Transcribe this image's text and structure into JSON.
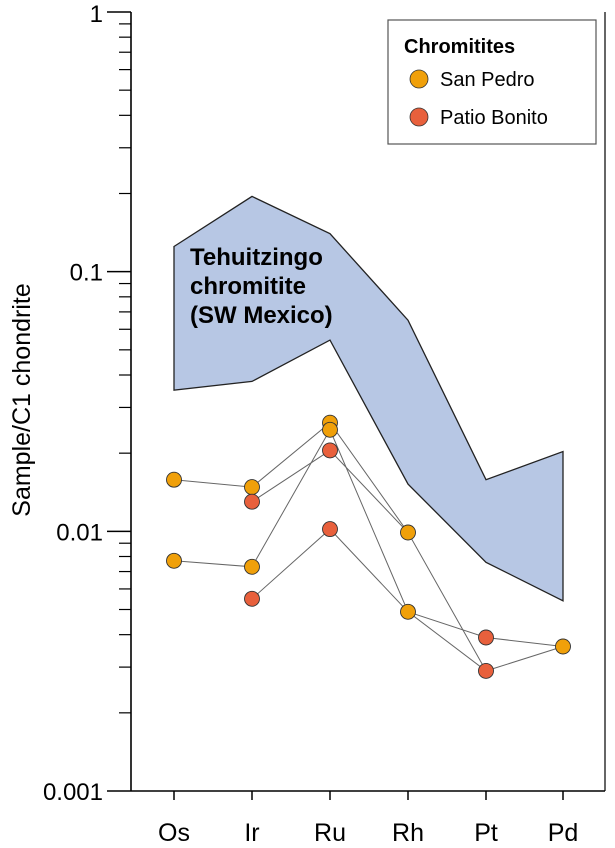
{
  "chart_data": {
    "type": "line",
    "yscale": "log",
    "ylabel": "Sample/C1 chondrite",
    "xlabel": "",
    "ylim": [
      0.001,
      1
    ],
    "y_ticks": [
      {
        "value": 0.001,
        "label": "0.001"
      },
      {
        "value": 0.01,
        "label": "0.01"
      },
      {
        "value": 0.1,
        "label": "0.1"
      },
      {
        "value": 1,
        "label": "1"
      }
    ],
    "categories": [
      "Os",
      "Ir",
      "Ru",
      "Rh",
      "Pt",
      "Pd"
    ],
    "legend": {
      "title": "Chromitites",
      "position": "top-right",
      "entries": [
        {
          "name": "San Pedro",
          "color": "#f0a00a"
        },
        {
          "name": "Patio Bonito",
          "color": "#e8603c"
        }
      ]
    },
    "band": {
      "label_lines": [
        "Tehuitzingo",
        "chromitite",
        "(SW Mexico)"
      ],
      "color": "#b7c7e4",
      "upper": [
        0.125,
        0.195,
        0.14,
        0.065,
        0.0158,
        0.0203
      ],
      "lower": [
        0.035,
        0.0378,
        0.0545,
        0.0152,
        0.0076,
        0.0054
      ]
    },
    "series": [
      {
        "group": "San Pedro",
        "values": [
          0.0158,
          0.0148,
          0.0262,
          0.0099,
          null,
          null
        ]
      },
      {
        "group": "San Pedro",
        "values": [
          0.0077,
          0.0073,
          0.0246,
          0.0049,
          0.0029,
          0.0036
        ]
      },
      {
        "group": "Patio Bonito",
        "values": [
          null,
          0.013,
          0.0205,
          0.0099,
          0.0029,
          null
        ]
      },
      {
        "group": "Patio Bonito",
        "values": [
          null,
          0.0055,
          0.0102,
          0.0049,
          0.0039,
          0.0036
        ]
      }
    ],
    "points": [
      {
        "group": "San Pedro",
        "x": "Os",
        "y": 0.0158
      },
      {
        "group": "San Pedro",
        "x": "Os",
        "y": 0.0077
      },
      {
        "group": "San Pedro",
        "x": "Ir",
        "y": 0.0148
      },
      {
        "group": "San Pedro",
        "x": "Ir",
        "y": 0.0073
      },
      {
        "group": "San Pedro",
        "x": "Ru",
        "y": 0.0262
      },
      {
        "group": "San Pedro",
        "x": "Ru",
        "y": 0.0246
      },
      {
        "group": "San Pedro",
        "x": "Rh",
        "y": 0.0099
      },
      {
        "group": "San Pedro",
        "x": "Rh",
        "y": 0.0049
      },
      {
        "group": "San Pedro",
        "x": "Pd",
        "y": 0.0036
      },
      {
        "group": "Patio Bonito",
        "x": "Ir",
        "y": 0.013
      },
      {
        "group": "Patio Bonito",
        "x": "Ir",
        "y": 0.0055
      },
      {
        "group": "Patio Bonito",
        "x": "Ru",
        "y": 0.0205
      },
      {
        "group": "Patio Bonito",
        "x": "Ru",
        "y": 0.0102
      },
      {
        "group": "Patio Bonito",
        "x": "Pt",
        "y": 0.0039
      },
      {
        "group": "Patio Bonito",
        "x": "Pt",
        "y": 0.0029
      }
    ]
  }
}
